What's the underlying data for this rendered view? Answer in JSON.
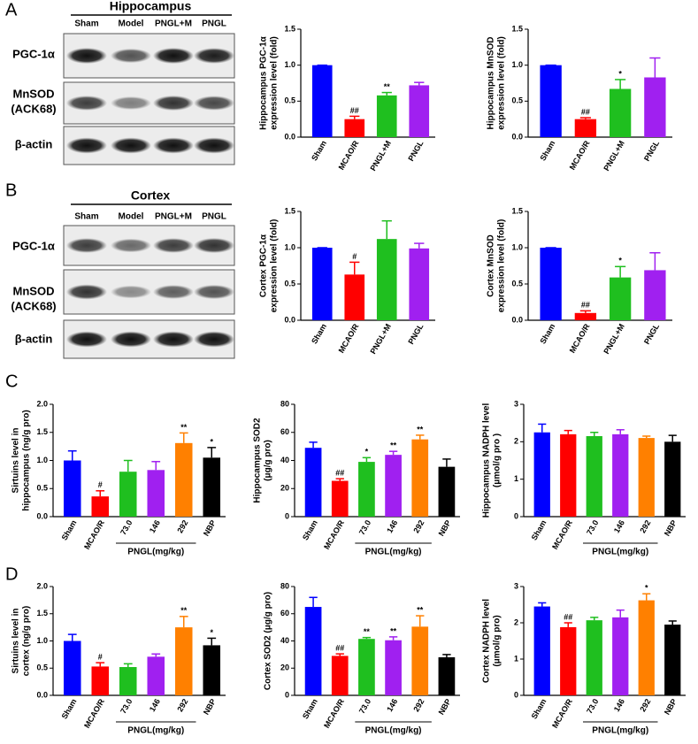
{
  "panel_labels": [
    "A",
    "B",
    "C",
    "D"
  ],
  "blots": [
    {
      "title": "Hippocampus",
      "lanes": [
        "Sham",
        "Model",
        "PNGL+M",
        "PNGL"
      ],
      "rows": [
        [
          "PGC-1α"
        ],
        [
          "MnSOD",
          "(ACK68)"
        ],
        [
          "β-actin"
        ]
      ]
    },
    {
      "title": "Cortex",
      "lanes": [
        "Sham",
        "Model",
        "PNGL+M",
        "PNGL"
      ],
      "rows": [
        [
          "PGC-1α"
        ],
        [
          "MnSOD",
          "(ACK68)"
        ],
        [
          "β-actin"
        ]
      ]
    }
  ],
  "chart_data": [
    {
      "type": "bar",
      "ylabel": [
        "Hippocampus PGC-1α",
        "expression level (fold)"
      ],
      "categories": [
        "Sham",
        "MCAO/R",
        "PNGL+M",
        "PNGL"
      ],
      "values": [
        1.0,
        0.25,
        0.58,
        0.72
      ],
      "errors": [
        0,
        0.04,
        0.04,
        0.04
      ],
      "annotations": [
        null,
        "##",
        "**",
        null
      ],
      "colors": [
        "#0000ff",
        "#ff0000",
        "#1fbf1f",
        "#a020f0"
      ],
      "ylim": [
        0,
        1.5
      ],
      "yticks": [
        {
          "value": 0,
          "label": "0.0"
        },
        0.5,
        {
          "value": 1,
          "label": "1.0"
        },
        1.5
      ]
    },
    {
      "type": "bar",
      "ylabel": [
        "Hippocampus MnSOD",
        "expression level (fold)"
      ],
      "categories": [
        "Sham",
        "MCAO/R",
        "PNGL+M",
        "PNGL"
      ],
      "values": [
        1.0,
        0.25,
        0.67,
        0.83
      ],
      "errors": [
        0,
        0.02,
        0.13,
        0.27
      ],
      "annotations": [
        null,
        "##",
        "*",
        null
      ],
      "colors": [
        "#0000ff",
        "#ff0000",
        "#1fbf1f",
        "#a020f0"
      ],
      "ylim": [
        0,
        1.5
      ],
      "yticks": [
        {
          "value": 0,
          "label": "0.0"
        },
        0.5,
        {
          "value": 1,
          "label": "1.0"
        },
        1.5
      ]
    },
    {
      "type": "bar",
      "ylabel": [
        "Cortex PGC-1α",
        "expression level (fold)"
      ],
      "categories": [
        "Sham",
        "MCAO/R",
        "PNGL+M",
        "PNGL"
      ],
      "values": [
        1.0,
        0.63,
        1.12,
        0.99
      ],
      "errors": [
        0,
        0.17,
        0.25,
        0.07
      ],
      "annotations": [
        null,
        "#",
        null,
        null
      ],
      "colors": [
        "#0000ff",
        "#ff0000",
        "#1fbf1f",
        "#a020f0"
      ],
      "ylim": [
        0,
        1.5
      ],
      "yticks": [
        {
          "value": 0,
          "label": "0.0"
        },
        0.5,
        {
          "value": 1,
          "label": "1.0"
        },
        1.5
      ]
    },
    {
      "type": "bar",
      "ylabel": [
        "Cortex MnSOD",
        "expression level (fold)"
      ],
      "categories": [
        "Sham",
        "MCAO/R",
        "PNGL+M",
        "PNGL"
      ],
      "values": [
        1.0,
        0.1,
        0.59,
        0.69
      ],
      "errors": [
        0,
        0.03,
        0.15,
        0.24
      ],
      "annotations": [
        null,
        "##",
        "*",
        null
      ],
      "colors": [
        "#0000ff",
        "#ff0000",
        "#1fbf1f",
        "#a020f0"
      ],
      "ylim": [
        0,
        1.5
      ],
      "yticks": [
        {
          "value": 0,
          "label": "0.0"
        },
        0.5,
        {
          "value": 1,
          "label": "1.0"
        },
        1.5
      ]
    },
    {
      "type": "bar",
      "ylabel": [
        "Sirtuins level in",
        "hippocampus (ng/g pro)"
      ],
      "group_label": "PNGL(mg/kg)",
      "categories": [
        "Sham",
        "MCAO/R",
        "73.0",
        "146",
        "292",
        "NBP"
      ],
      "values": [
        1.0,
        0.36,
        0.8,
        0.83,
        1.31,
        1.05
      ],
      "errors": [
        0.17,
        0.1,
        0.2,
        0.15,
        0.18,
        0.18
      ],
      "annotations": [
        null,
        "#",
        null,
        null,
        "**",
        "*"
      ],
      "colors": [
        "#0000ff",
        "#ff0000",
        "#1fbf1f",
        "#a020f0",
        "#ff8000",
        "#000000"
      ],
      "ylim": [
        0,
        2
      ],
      "yticks": [
        {
          "value": 0,
          "label": "0.0"
        },
        0.5,
        {
          "value": 1,
          "label": "1.0"
        },
        1.5,
        {
          "value": 2,
          "label": "2.0"
        }
      ]
    },
    {
      "type": "bar",
      "ylabel": [
        "Hippocampus SOD2",
        "(μg/g pro)"
      ],
      "group_label": "PNGL(mg/kg)",
      "categories": [
        "Sham",
        "MCAO/R",
        "73.0",
        "146",
        "292",
        "NBP"
      ],
      "values": [
        49,
        25.5,
        39,
        44,
        55,
        35.5
      ],
      "errors": [
        4,
        1.5,
        3,
        2.5,
        3,
        5.5
      ],
      "annotations": [
        null,
        "##",
        "*",
        "**",
        "**",
        null
      ],
      "colors": [
        "#0000ff",
        "#ff0000",
        "#1fbf1f",
        "#a020f0",
        "#ff8000",
        "#000000"
      ],
      "ylim": [
        0,
        80
      ],
      "yticks": [
        0,
        20,
        40,
        60,
        80
      ]
    },
    {
      "type": "bar",
      "ylabel": [
        "Hippocampus NADPH level",
        "(μmol/g pro )"
      ],
      "group_label": "PNGL(mg/kg)",
      "categories": [
        "Sham",
        "MCAO/R",
        "73.0",
        "146",
        "292",
        "NBP"
      ],
      "values": [
        2.25,
        2.2,
        2.15,
        2.2,
        2.1,
        2.0
      ],
      "errors": [
        0.22,
        0.1,
        0.1,
        0.12,
        0.05,
        0.17
      ],
      "annotations": [
        null,
        null,
        null,
        null,
        null,
        null
      ],
      "colors": [
        "#0000ff",
        "#ff0000",
        "#1fbf1f",
        "#a020f0",
        "#ff8000",
        "#000000"
      ],
      "ylim": [
        0,
        3
      ],
      "yticks": [
        0,
        1,
        2,
        3
      ]
    },
    {
      "type": "bar",
      "ylabel": [
        "Sirtuins level in",
        "cortex (ng/g pro)"
      ],
      "group_label": "PNGL(mg/kg)",
      "categories": [
        "Sham",
        "MCAO/R",
        "73.0",
        "146",
        "292",
        "NBP"
      ],
      "values": [
        1.0,
        0.53,
        0.52,
        0.71,
        1.25,
        0.92
      ],
      "errors": [
        0.12,
        0.07,
        0.06,
        0.05,
        0.2,
        0.13
      ],
      "annotations": [
        null,
        "#",
        null,
        null,
        "**",
        "*"
      ],
      "colors": [
        "#0000ff",
        "#ff0000",
        "#1fbf1f",
        "#a020f0",
        "#ff8000",
        "#000000"
      ],
      "ylim": [
        0,
        2
      ],
      "yticks": [
        {
          "value": 0,
          "label": "0.0"
        },
        0.5,
        {
          "value": 1,
          "label": "1.0"
        },
        1.5,
        {
          "value": 2,
          "label": "2.0"
        }
      ]
    },
    {
      "type": "bar",
      "ylabel": [
        "Cortex SOD2 (μg/g pro)"
      ],
      "group_label": "PNGL(mg/kg)",
      "categories": [
        "Sham",
        "MCAO/R",
        "73.0",
        "146",
        "292",
        "NBP"
      ],
      "values": [
        65,
        29,
        41.5,
        40.5,
        50.5,
        28
      ],
      "errors": [
        7,
        1.5,
        1,
        2.5,
        8,
        2
      ],
      "annotations": [
        null,
        "##",
        "**",
        "**",
        "**",
        null
      ],
      "colors": [
        "#0000ff",
        "#ff0000",
        "#1fbf1f",
        "#a020f0",
        "#ff8000",
        "#000000"
      ],
      "ylim": [
        0,
        80
      ],
      "yticks": [
        0,
        20,
        40,
        60,
        80
      ]
    },
    {
      "type": "bar",
      "ylabel": [
        "Cortex NADPH level",
        "(μmol/g pro)"
      ],
      "group_label": "PNGL(mg/kg)",
      "categories": [
        "Sham",
        "MCAO/R",
        "73.0",
        "146",
        "292",
        "NBP"
      ],
      "values": [
        2.45,
        1.88,
        2.07,
        2.15,
        2.62,
        1.95
      ],
      "errors": [
        0.1,
        0.12,
        0.08,
        0.2,
        0.18,
        0.1
      ],
      "annotations": [
        null,
        "##",
        null,
        null,
        "*",
        null
      ],
      "colors": [
        "#0000ff",
        "#ff0000",
        "#1fbf1f",
        "#a020f0",
        "#ff8000",
        "#000000"
      ],
      "ylim": [
        0,
        3
      ],
      "yticks": [
        0,
        1,
        2,
        3
      ]
    }
  ]
}
